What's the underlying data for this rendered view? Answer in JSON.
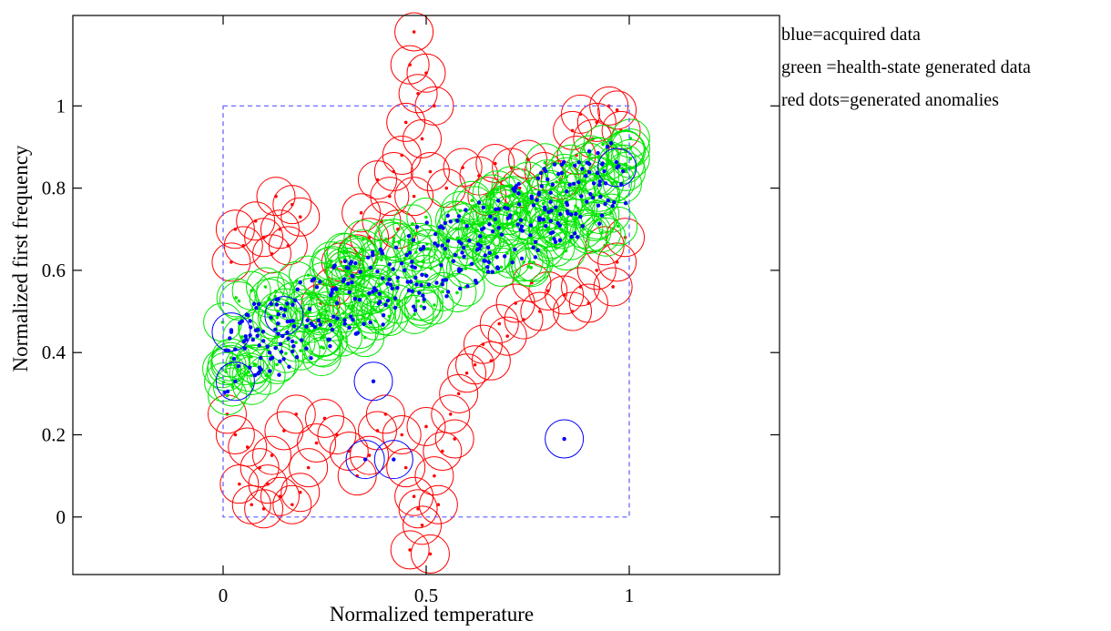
{
  "chart_data": {
    "type": "scatter",
    "xlabel": "Normalized temperature",
    "ylabel": "Normalized first frequency",
    "xlim": [
      -0.37,
      1.37
    ],
    "ylim": [
      -0.14,
      1.22
    ],
    "x_ticks": [
      0,
      0.5,
      1
    ],
    "x_tick_labels": [
      "0",
      "0.5",
      "1"
    ],
    "y_ticks": [
      0,
      0.2,
      0.4,
      0.6,
      0.8,
      1
    ],
    "y_tick_labels": [
      "0",
      "0.2",
      "0.4",
      "0.6",
      "0.8",
      "1"
    ],
    "grid": false,
    "legend_position": "outside-right-top",
    "legend": [
      "blue=acquired data",
      "green =health-state generated data",
      "red dots=generated anomalies"
    ],
    "reference_box": {
      "x": [
        0,
        1
      ],
      "y": [
        0,
        1
      ],
      "style": "dashed",
      "color": "#5b5bff"
    },
    "colors": {
      "acquired": "#0000ff",
      "generated": "#00e600",
      "anomalies": "#ff0000"
    },
    "series": [
      {
        "key": "acquired",
        "band": {
          "start": [
            0.02,
            0.4
          ],
          "end": [
            0.98,
            0.83
          ],
          "width": 0.1
        },
        "points": [
          [
            0.84,
            0.19
          ],
          [
            0.02,
            0.45
          ],
          [
            0.03,
            0.33
          ],
          [
            0.35,
            0.14
          ],
          [
            0.42,
            0.14
          ],
          [
            0.37,
            0.33
          ],
          [
            0.97,
            0.85
          ],
          [
            0.15,
            0.49
          ]
        ]
      },
      {
        "key": "generated",
        "band": {
          "start": [
            0.0,
            0.41
          ],
          "end": [
            1.0,
            0.83
          ],
          "width": 0.12
        },
        "points": []
      },
      {
        "key": "anomalies",
        "points": [
          [
            0.05,
            0.66
          ],
          [
            0.1,
            0.68
          ],
          [
            0.02,
            0.62
          ],
          [
            0.14,
            0.7
          ],
          [
            0.03,
            0.7
          ],
          [
            0.12,
            0.64
          ],
          [
            0.08,
            0.72
          ],
          [
            0.16,
            0.66
          ],
          [
            0.13,
            0.78
          ],
          [
            0.17,
            0.76
          ],
          [
            0.19,
            0.73
          ],
          [
            0.01,
            0.25
          ],
          [
            0.03,
            0.2
          ],
          [
            0.06,
            0.17
          ],
          [
            0.09,
            0.12
          ],
          [
            0.11,
            0.08
          ],
          [
            0.14,
            0.05
          ],
          [
            0.17,
            0.03
          ],
          [
            0.19,
            0.06
          ],
          [
            0.21,
            0.12
          ],
          [
            0.23,
            0.18
          ],
          [
            0.25,
            0.24
          ],
          [
            0.28,
            0.2
          ],
          [
            0.31,
            0.16
          ],
          [
            0.33,
            0.1
          ],
          [
            0.36,
            0.15
          ],
          [
            0.38,
            0.21
          ],
          [
            0.4,
            0.25
          ],
          [
            0.04,
            0.08
          ],
          [
            0.07,
            0.03
          ],
          [
            0.1,
            0.02
          ],
          [
            0.12,
            0.15
          ],
          [
            0.15,
            0.21
          ],
          [
            0.18,
            0.25
          ],
          [
            0.45,
            0.12
          ],
          [
            0.47,
            0.05
          ],
          [
            0.49,
            -0.02
          ],
          [
            0.46,
            -0.08
          ],
          [
            0.51,
            -0.09
          ],
          [
            0.48,
            0.02
          ],
          [
            0.52,
            0.1
          ],
          [
            0.54,
            0.16
          ],
          [
            0.44,
            0.2
          ],
          [
            0.5,
            0.22
          ],
          [
            0.56,
            0.25
          ],
          [
            0.58,
            0.3
          ],
          [
            0.6,
            0.35
          ],
          [
            0.57,
            0.19
          ],
          [
            0.53,
            0.03
          ],
          [
            0.47,
            1.18
          ],
          [
            0.46,
            1.1
          ],
          [
            0.48,
            1.03
          ],
          [
            0.45,
            0.96
          ],
          [
            0.5,
            1.08
          ],
          [
            0.52,
            1.0
          ],
          [
            0.49,
            0.92
          ],
          [
            0.44,
            0.88
          ],
          [
            0.51,
            0.84
          ],
          [
            0.47,
            0.78
          ],
          [
            0.42,
            0.84
          ],
          [
            0.24,
            0.52
          ],
          [
            0.27,
            0.56
          ],
          [
            0.3,
            0.6
          ],
          [
            0.33,
            0.64
          ],
          [
            0.36,
            0.68
          ],
          [
            0.39,
            0.72
          ],
          [
            0.34,
            0.74
          ],
          [
            0.29,
            0.62
          ],
          [
            0.38,
            0.82
          ],
          [
            0.41,
            0.78
          ],
          [
            0.43,
            0.7
          ],
          [
            0.55,
            0.8
          ],
          [
            0.59,
            0.85
          ],
          [
            0.63,
            0.83
          ],
          [
            0.67,
            0.86
          ],
          [
            0.71,
            0.85
          ],
          [
            0.75,
            0.87
          ],
          [
            0.79,
            0.84
          ],
          [
            0.83,
            0.82
          ],
          [
            0.87,
            0.88
          ],
          [
            0.65,
            0.78
          ],
          [
            0.73,
            0.8
          ],
          [
            0.88,
            0.98
          ],
          [
            0.92,
            0.96
          ],
          [
            0.95,
            1.0
          ],
          [
            0.91,
            0.92
          ],
          [
            0.98,
            0.94
          ],
          [
            0.86,
            0.94
          ],
          [
            0.97,
            0.99
          ],
          [
            0.94,
            0.66
          ],
          [
            0.97,
            0.62
          ],
          [
            0.99,
            0.68
          ],
          [
            0.92,
            0.6
          ],
          [
            0.88,
            0.56
          ],
          [
            0.84,
            0.54
          ],
          [
            0.8,
            0.55
          ],
          [
            0.76,
            0.57
          ],
          [
            0.72,
            0.52
          ],
          [
            0.68,
            0.47
          ],
          [
            0.64,
            0.42
          ],
          [
            0.62,
            0.37
          ],
          [
            0.9,
            0.52
          ],
          [
            0.86,
            0.5
          ],
          [
            0.78,
            0.5
          ],
          [
            0.7,
            0.44
          ],
          [
            0.96,
            0.56
          ],
          [
            0.66,
            0.38
          ],
          [
            0.74,
            0.48
          ]
        ]
      }
    ]
  }
}
